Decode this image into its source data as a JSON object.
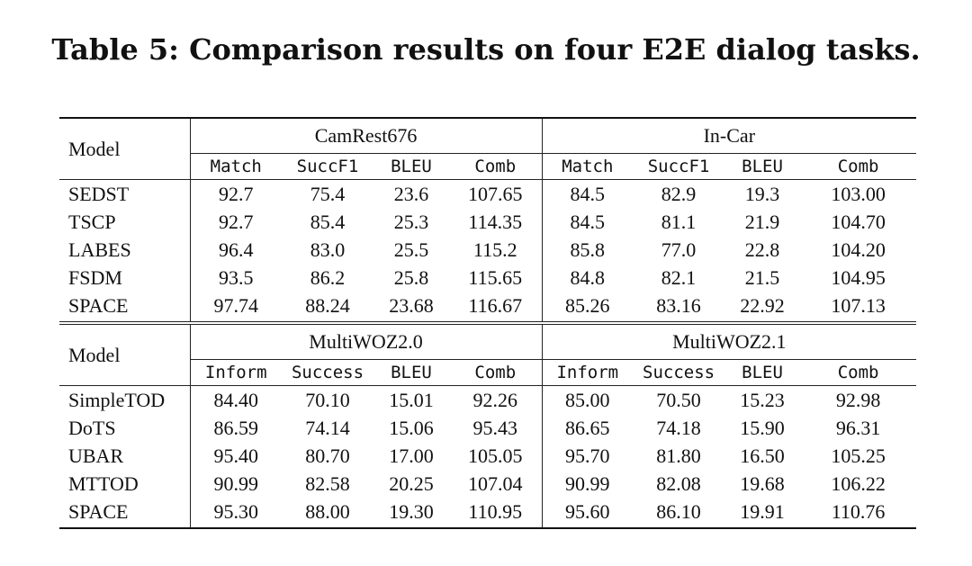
{
  "caption": "Table 5: Comparison results on four E2E dialog tasks.",
  "sections": [
    {
      "model_header": "Model",
      "groups": [
        "CamRest676",
        "In-Car"
      ],
      "metrics": [
        "Match",
        "SuccF1",
        "BLEU",
        "Comb",
        "Match",
        "SuccF1",
        "BLEU",
        "Comb"
      ],
      "rows": [
        {
          "model": "SEDST",
          "values": [
            "92.7",
            "75.4",
            "23.6",
            "107.65",
            "84.5",
            "82.9",
            "19.3",
            "103.00"
          ],
          "bold": []
        },
        {
          "model": "TSCP",
          "values": [
            "92.7",
            "85.4",
            "25.3",
            "114.35",
            "84.5",
            "81.1",
            "21.9",
            "104.70"
          ],
          "bold": []
        },
        {
          "model": "LABES",
          "values": [
            "96.4",
            "83.0",
            "25.5",
            "115.2",
            "85.8",
            "77.0",
            "22.8",
            "104.20"
          ],
          "bold": []
        },
        {
          "model": "FSDM",
          "values": [
            "93.5",
            "86.2",
            "25.8",
            "115.65",
            "84.8",
            "82.1",
            "21.5",
            "104.95"
          ],
          "bold": [
            2
          ]
        },
        {
          "model": "SPACE",
          "values": [
            "97.74",
            "88.24",
            "23.68",
            "116.67",
            "85.26",
            "83.16",
            "22.92",
            "107.13"
          ],
          "bold": [
            0,
            1,
            3,
            4,
            5,
            6,
            7
          ]
        }
      ]
    },
    {
      "model_header": "Model",
      "groups": [
        "MultiWOZ2.0",
        "MultiWOZ2.1"
      ],
      "metrics": [
        "Inform",
        "Success",
        "BLEU",
        "Comb",
        "Inform",
        "Success",
        "BLEU",
        "Comb"
      ],
      "rows": [
        {
          "model": "SimpleTOD",
          "values": [
            "84.40",
            "70.10",
            "15.01",
            "92.26",
            "85.00",
            "70.50",
            "15.23",
            "92.98"
          ],
          "bold": []
        },
        {
          "model": "DoTS",
          "values": [
            "86.59",
            "74.14",
            "15.06",
            "95.43",
            "86.65",
            "74.18",
            "15.90",
            "96.31"
          ],
          "bold": []
        },
        {
          "model": "UBAR",
          "values": [
            "95.40",
            "80.70",
            "17.00",
            "105.05",
            "95.70",
            "81.80",
            "16.50",
            "105.25"
          ],
          "bold": [
            0,
            4
          ]
        },
        {
          "model": "MTTOD",
          "values": [
            "90.99",
            "82.58",
            "20.25",
            "107.04",
            "90.99",
            "82.08",
            "19.68",
            "106.22"
          ],
          "bold": [
            2
          ]
        },
        {
          "model": "SPACE",
          "values": [
            "95.30",
            "88.00",
            "19.30",
            "110.95",
            "95.60",
            "86.10",
            "19.91",
            "110.76"
          ],
          "bold": [
            1,
            3,
            5,
            6,
            7
          ]
        }
      ]
    }
  ]
}
